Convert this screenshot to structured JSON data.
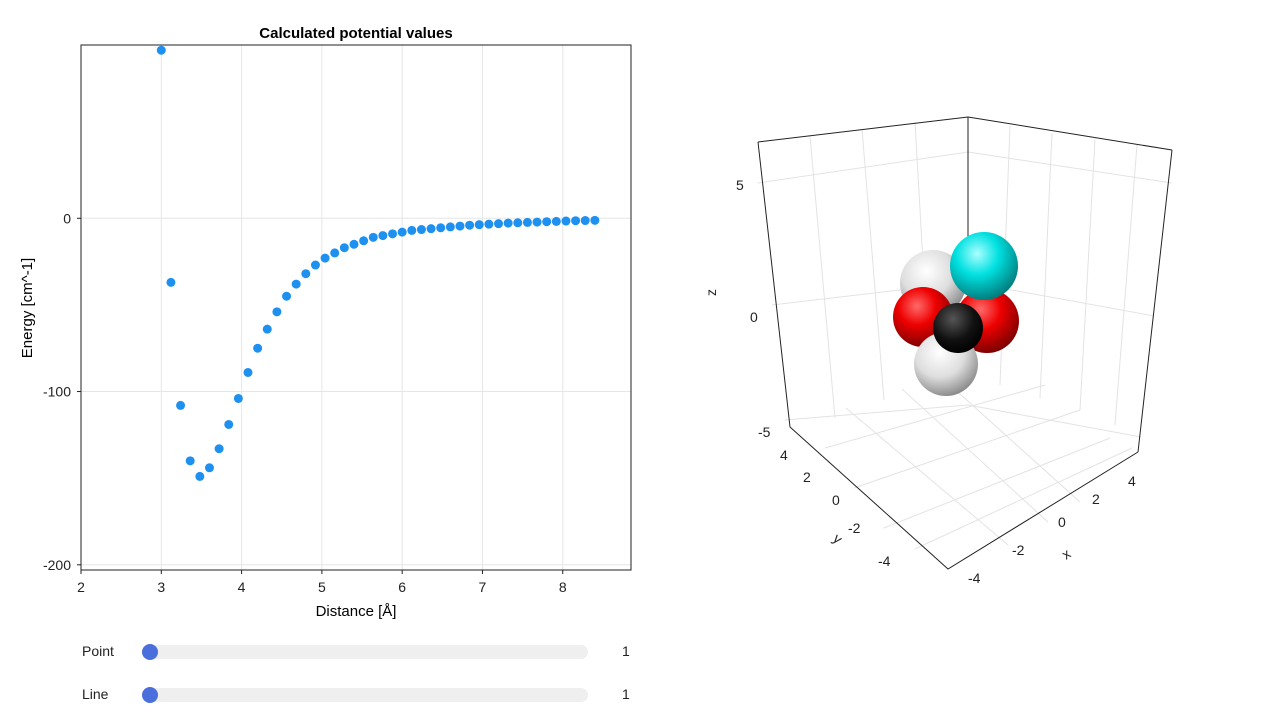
{
  "chart_data": [
    {
      "type": "scatter",
      "title": "Calculated potential values",
      "xlabel": "Distance   [Å]",
      "ylabel": "Energy   [cm^-1]",
      "xlim": [
        2,
        8.85
      ],
      "ylim": [
        -203,
        100
      ],
      "xticks": [
        2,
        3,
        4,
        5,
        6,
        7,
        8
      ],
      "yticks": [
        -200,
        -100,
        0
      ],
      "grid": true,
      "series": [
        {
          "color": "#1e90f0",
          "x": [
            3.0,
            3.12,
            3.24,
            3.36,
            3.48,
            3.6,
            3.72,
            3.84,
            3.96,
            4.08,
            4.2,
            4.32,
            4.44,
            4.56,
            4.68,
            4.8,
            4.92,
            5.04,
            5.16,
            5.28,
            5.4,
            5.52,
            5.64,
            5.76,
            5.88,
            6.0,
            6.12,
            6.24,
            6.36,
            6.48,
            6.6,
            6.72,
            6.84,
            6.96,
            7.08,
            7.2,
            7.32,
            7.44,
            7.56,
            7.68,
            7.8,
            7.92,
            8.04,
            8.16,
            8.28,
            8.4
          ],
          "y": [
            97,
            -37,
            -108,
            -140,
            -149,
            -144,
            -133,
            -119,
            -104,
            -89,
            -75,
            -64,
            -54,
            -45,
            -38,
            -32,
            -27,
            -23,
            -20,
            -17,
            -15,
            -13,
            -11,
            -10,
            -9,
            -8,
            -7,
            -6.5,
            -6,
            -5.5,
            -5,
            -4.5,
            -4,
            -3.7,
            -3.4,
            -3.1,
            -2.8,
            -2.6,
            -2.4,
            -2.2,
            -2,
            -1.8,
            -1.6,
            -1.4,
            -1.3,
            -1.2
          ]
        }
      ]
    },
    {
      "type": "3d-scatter",
      "xlabel": "x",
      "ylabel": "y",
      "zlabel": "z",
      "xticks": [
        "4",
        "2",
        "0",
        "-2",
        "-4"
      ],
      "yticks": [
        "4",
        "2",
        "0",
        "-2",
        "-4"
      ],
      "zticks": [
        "5",
        "0",
        "-5"
      ],
      "atoms": [
        {
          "name": "hydrogen-top",
          "color": "#e8e8e8"
        },
        {
          "name": "oxygen-left",
          "color": "#ff0000"
        },
        {
          "name": "oxygen-right",
          "color": "#ff0000"
        },
        {
          "name": "hydrogen-bottom",
          "color": "#e8e8e8"
        },
        {
          "name": "carbon-center",
          "color": "#111111"
        },
        {
          "name": "cyan-atom",
          "color": "#00e5e5"
        }
      ]
    }
  ],
  "controls": {
    "point": {
      "label": "Point",
      "value": "1"
    },
    "line": {
      "label": "Line",
      "value": "1"
    }
  }
}
